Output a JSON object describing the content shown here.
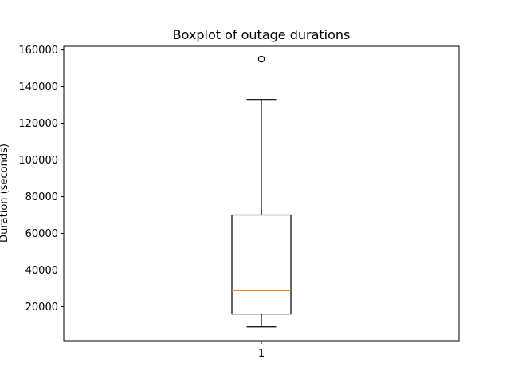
{
  "chart_data": {
    "type": "boxplot",
    "title": "Boxplot of outage durations",
    "xlabel": "",
    "ylabel": "Duration (seconds)",
    "categories": [
      "1"
    ],
    "ylim": [
      1500,
      162000
    ],
    "yticks": [
      20000,
      40000,
      60000,
      80000,
      100000,
      120000,
      140000,
      160000
    ],
    "ytick_labels": [
      "20000",
      "40000",
      "60000",
      "80000",
      "100000",
      "120000",
      "140000",
      "160000"
    ],
    "boxes": [
      {
        "label": "1",
        "whisker_low": 9000,
        "q1": 16000,
        "median": 28800,
        "q3": 70000,
        "whisker_high": 133000,
        "outliers": [
          155000
        ]
      }
    ],
    "grid": false,
    "colors": {
      "box": "#000000",
      "median": "#ff7f0e",
      "axes": "#000000",
      "background": "#ffffff"
    }
  }
}
